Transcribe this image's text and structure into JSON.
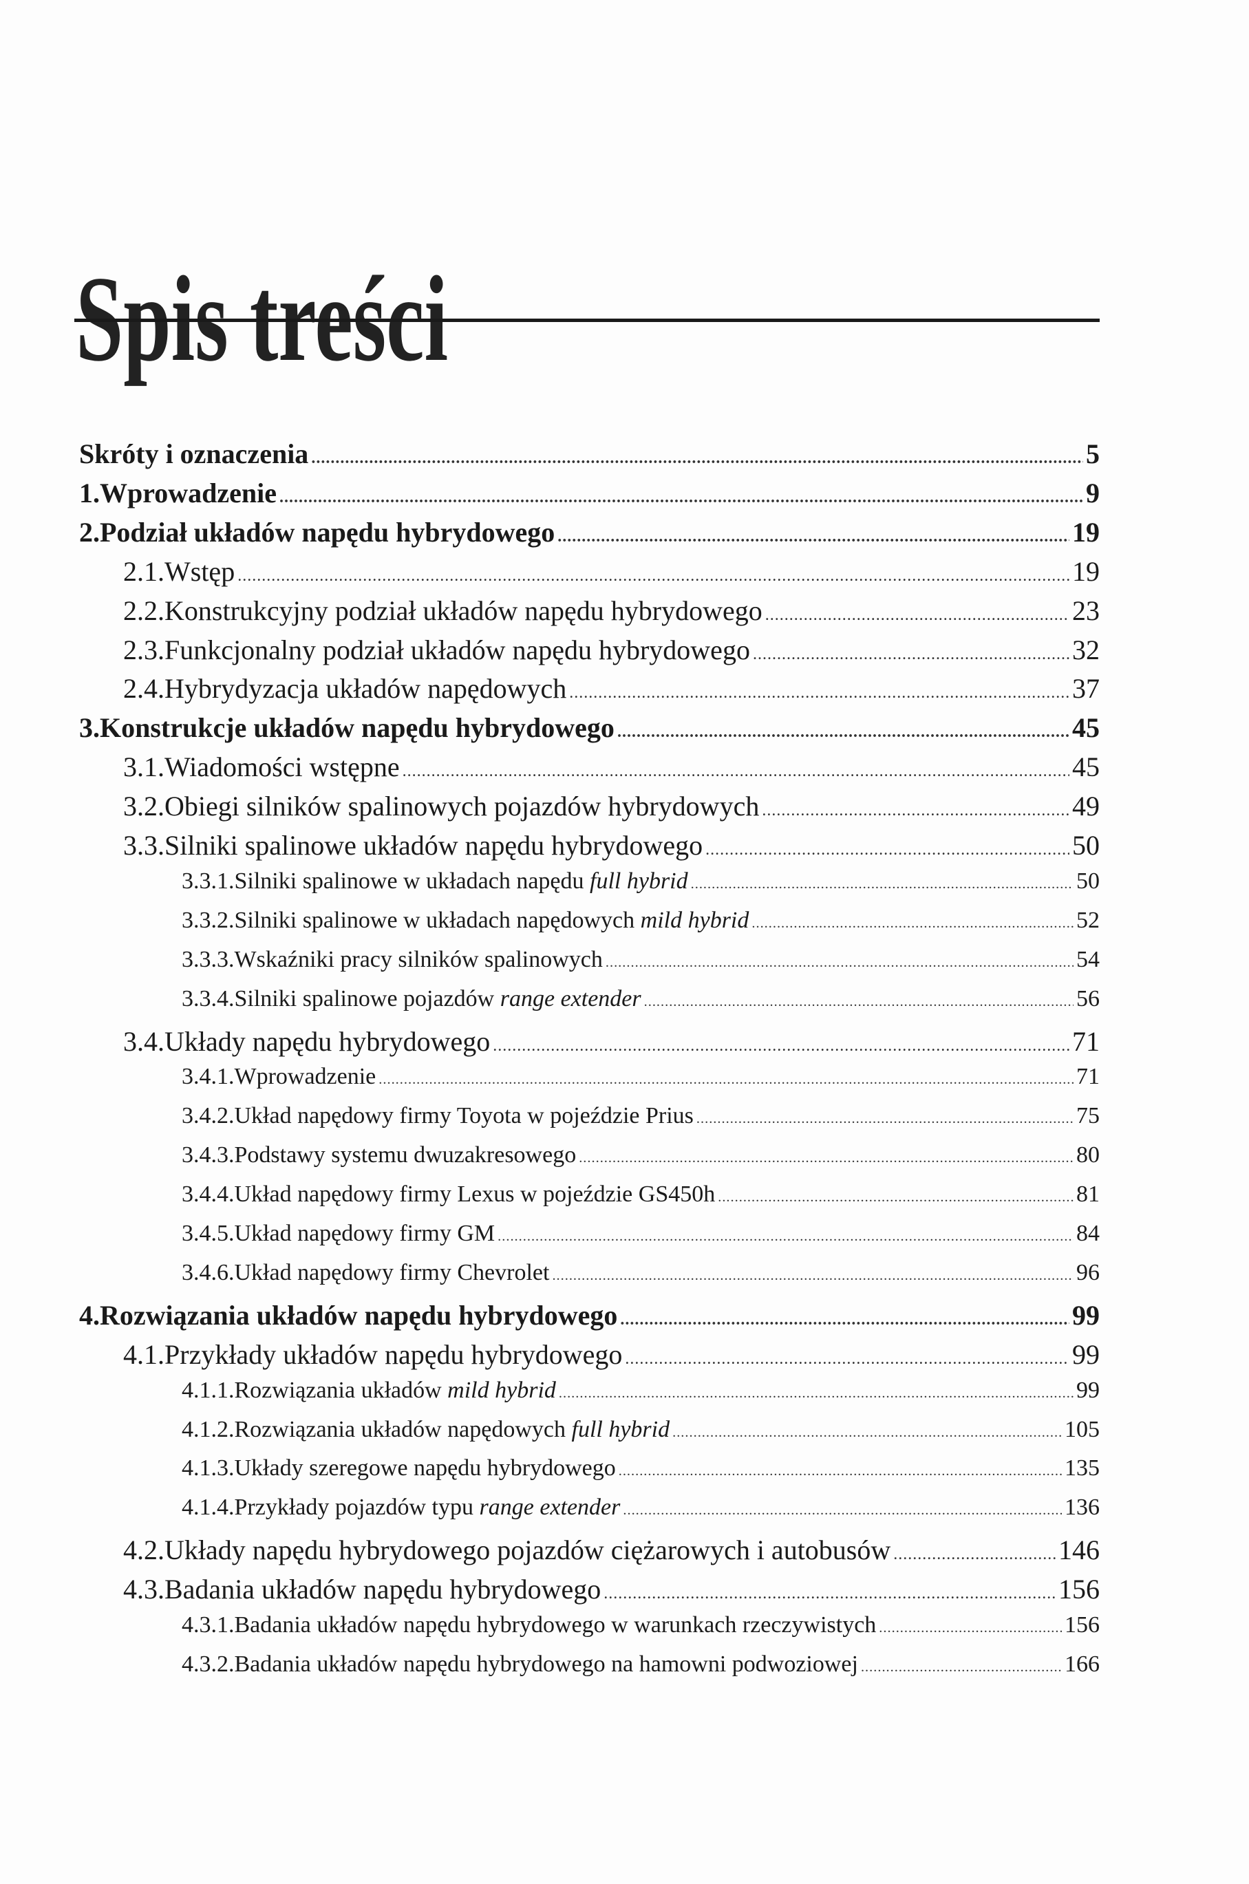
{
  "title": "Spis treści",
  "entries": [
    {
      "level": 1,
      "num": "",
      "title": "Skróty i oznaczenia",
      "page": "5"
    },
    {
      "level": 1,
      "num": "1.",
      "title": "Wprowadzenie",
      "page": "9"
    },
    {
      "level": 1,
      "num": "2.",
      "title": "Podział układów napędu hybrydowego",
      "page": "19"
    },
    {
      "level": 2,
      "num": "2.1.",
      "title": "Wstęp",
      "page": "19"
    },
    {
      "level": 2,
      "num": "2.2.",
      "title": "Konstrukcyjny podział układów napędu hybrydowego",
      "page": "23"
    },
    {
      "level": 2,
      "num": "2.3.",
      "title": "Funkcjonalny podział układów napędu hybrydowego",
      "page": "32"
    },
    {
      "level": 2,
      "num": "2.4.",
      "title": "Hybrydyzacja układów napędowych",
      "page": "37"
    },
    {
      "level": 1,
      "num": "3.",
      "title": "Konstrukcje układów napędu hybrydowego",
      "page": "45"
    },
    {
      "level": 2,
      "num": "3.1.",
      "title": "Wiadomości wstępne",
      "page": "45"
    },
    {
      "level": 2,
      "num": "3.2.",
      "title": "Obiegi silników spalinowych pojazdów hybrydowych",
      "page": "49"
    },
    {
      "level": 2,
      "num": "3.3.",
      "title": "Silniki spalinowe układów napędu hybrydowego",
      "page": "50"
    },
    {
      "level": 3,
      "num": "3.3.1.",
      "title": "Silniki spalinowe w układach napędu ",
      "title_italic": "full hybrid",
      "page": "50"
    },
    {
      "level": 3,
      "num": "3.3.2.",
      "title": "Silniki spalinowe w układach napędowych ",
      "title_italic": "mild hybrid",
      "page": "52"
    },
    {
      "level": 3,
      "num": "3.3.3.",
      "title": "Wskaźniki pracy silników spalinowych",
      "page": "54"
    },
    {
      "level": 3,
      "num": "3.3.4.",
      "title": "Silniki spalinowe pojazdów ",
      "title_italic": "range extender",
      "page": "56"
    },
    {
      "level": 2,
      "num": "3.4.",
      "title": "Układy napędu hybrydowego",
      "page": "71"
    },
    {
      "level": 3,
      "num": "3.4.1.",
      "title": "Wprowadzenie",
      "page": "71"
    },
    {
      "level": 3,
      "num": "3.4.2.",
      "title": "Układ napędowy firmy Toyota w pojeździe Prius",
      "page": "75"
    },
    {
      "level": 3,
      "num": "3.4.3.",
      "title": "Podstawy systemu dwuzakresowego",
      "page": "80"
    },
    {
      "level": 3,
      "num": "3.4.4.",
      "title": "Układ napędowy firmy Lexus w pojeździe GS450h",
      "page": "81"
    },
    {
      "level": 3,
      "num": "3.4.5.",
      "title": "Układ napędowy firmy GM",
      "page": "84"
    },
    {
      "level": 3,
      "num": "3.4.6.",
      "title": "Układ napędowy firmy Chevrolet",
      "page": "96"
    },
    {
      "level": 1,
      "num": "4.",
      "title": "Rozwiązania układów napędu hybrydowego",
      "page": "99"
    },
    {
      "level": 2,
      "num": "4.1.",
      "title": "Przykłady układów napędu hybrydowego",
      "page": "99"
    },
    {
      "level": 3,
      "num": "4.1.1.",
      "title": "Rozwiązania układów ",
      "title_italic": "mild hybrid",
      "page": "99"
    },
    {
      "level": 3,
      "num": "4.1.2.",
      "title": "Rozwiązania układów napędowych ",
      "title_italic": "full hybrid",
      "page": "105"
    },
    {
      "level": 3,
      "num": "4.1.3.",
      "title": "Układy szeregowe napędu hybrydowego",
      "page": "135"
    },
    {
      "level": 3,
      "num": "4.1.4.",
      "title": "Przykłady pojazdów typu ",
      "title_italic": "range extender",
      "page": "136"
    },
    {
      "level": 2,
      "num": "4.2.",
      "title": "Układy napędu hybrydowego pojazdów ciężarowych i autobusów",
      "page": "146"
    },
    {
      "level": 2,
      "num": "4.3.",
      "title": "Badania układów napędu hybrydowego",
      "page": "156"
    },
    {
      "level": 3,
      "num": "4.3.1.",
      "title": "Badania układów napędu hybrydowego w warunkach rzeczywistych",
      "page": "156"
    },
    {
      "level": 3,
      "num": "4.3.2.",
      "title": "Badania układów napędu hybrydowego na hamowni podwoziowej",
      "page": "166"
    }
  ]
}
